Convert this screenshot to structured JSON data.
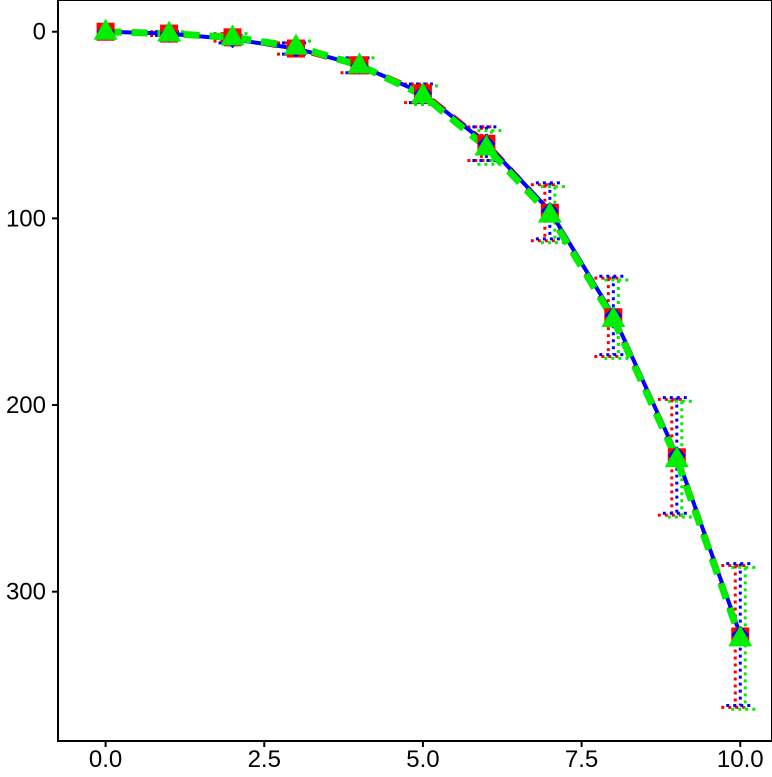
{
  "chart_data": {
    "type": "line",
    "title": "",
    "xlabel": "",
    "ylabel": "",
    "xlim": [
      -0.75,
      10.5
    ],
    "ylim": [
      -17,
      380
    ],
    "y_inverted": true,
    "grid": false,
    "legend": "none",
    "x_ticks": [
      {
        "value": 0,
        "label": "0.0"
      },
      {
        "value": 2.5,
        "label": "2.5"
      },
      {
        "value": 5,
        "label": "5.0"
      },
      {
        "value": 7.5,
        "label": "7.5"
      },
      {
        "value": 10,
        "label": "10.0"
      }
    ],
    "y_ticks": [
      {
        "value": 0,
        "label": "0"
      },
      {
        "value": 100,
        "label": "100"
      },
      {
        "value": 200,
        "label": "200"
      },
      {
        "value": 300,
        "label": "300"
      }
    ],
    "series": [
      {
        "color": "#ff0000",
        "line_style": "dashed",
        "marker": "square",
        "x": [
          0,
          1,
          2,
          3,
          4,
          5,
          6,
          7,
          8,
          9,
          10
        ],
        "y": [
          0,
          1,
          3,
          9,
          18,
          33,
          60,
          97,
          153,
          228,
          324
        ],
        "err": [
          0,
          1,
          2,
          3,
          4,
          5,
          9,
          15,
          21,
          31,
          38
        ]
      },
      {
        "color": "#0000ff",
        "line_style": "solid",
        "marker": "diamond",
        "x": [
          0,
          1,
          2,
          3,
          4,
          5,
          6,
          7,
          8,
          9,
          10
        ],
        "y": [
          0,
          1,
          4,
          9,
          18,
          33,
          60,
          96,
          152,
          227,
          323
        ],
        "err": [
          0,
          1,
          2,
          3,
          4,
          5,
          9,
          15,
          21,
          31,
          38
        ]
      },
      {
        "color": "#00ee00",
        "line_style": "dashed",
        "marker": "triangle",
        "x": [
          0,
          1,
          2,
          3,
          4,
          5,
          6,
          7,
          8,
          9,
          10
        ],
        "y": [
          0,
          1,
          3,
          8,
          18,
          34,
          62,
          98,
          154,
          229,
          325
        ],
        "err": [
          0,
          1,
          2,
          3,
          4,
          5,
          9,
          15,
          21,
          31,
          38
        ]
      }
    ]
  }
}
